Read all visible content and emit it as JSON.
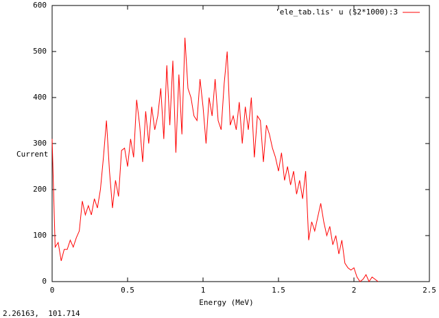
{
  "chart_data": {
    "type": "line",
    "xlabel": "Energy (MeV)",
    "ylabel": "Current",
    "x": [
      0,
      0.02,
      0.04,
      0.06,
      0.08,
      0.1,
      0.12,
      0.14,
      0.16,
      0.18,
      0.2,
      0.22,
      0.24,
      0.26,
      0.28,
      0.3,
      0.32,
      0.34,
      0.36,
      0.38,
      0.4,
      0.42,
      0.44,
      0.46,
      0.48,
      0.5,
      0.52,
      0.54,
      0.56,
      0.58,
      0.6,
      0.62,
      0.64,
      0.66,
      0.68,
      0.7,
      0.72,
      0.74,
      0.76,
      0.78,
      0.8,
      0.82,
      0.84,
      0.86,
      0.88,
      0.9,
      0.92,
      0.94,
      0.96,
      0.98,
      1,
      1.02,
      1.04,
      1.06,
      1.08,
      1.1,
      1.12,
      1.14,
      1.16,
      1.18,
      1.2,
      1.22,
      1.24,
      1.26,
      1.28,
      1.3,
      1.32,
      1.34,
      1.36,
      1.38,
      1.4,
      1.42,
      1.44,
      1.46,
      1.48,
      1.5,
      1.52,
      1.54,
      1.56,
      1.58,
      1.6,
      1.62,
      1.64,
      1.66,
      1.68,
      1.7,
      1.72,
      1.74,
      1.76,
      1.78,
      1.8,
      1.82,
      1.84,
      1.86,
      1.88,
      1.9,
      1.92,
      1.94,
      1.96,
      1.98,
      2,
      2.02,
      2.04,
      2.06,
      2.08,
      2.1,
      2.12,
      2.14,
      2.16
    ],
    "series": [
      {
        "name": "'ele_tab.lis' u ($2*1000):3",
        "color": "#ff0000",
        "values": [
          310,
          75,
          85,
          45,
          70,
          70,
          90,
          75,
          95,
          110,
          175,
          145,
          165,
          145,
          180,
          160,
          200,
          270,
          350,
          240,
          160,
          220,
          185,
          285,
          290,
          250,
          310,
          270,
          395,
          340,
          260,
          370,
          300,
          380,
          330,
          360,
          420,
          310,
          470,
          340,
          480,
          280,
          450,
          320,
          530,
          420,
          400,
          360,
          350,
          440,
          380,
          300,
          400,
          360,
          440,
          350,
          330,
          430,
          500,
          340,
          360,
          330,
          390,
          300,
          380,
          330,
          400,
          270,
          360,
          350,
          260,
          340,
          320,
          290,
          270,
          240,
          280,
          220,
          250,
          210,
          240,
          190,
          220,
          180,
          240,
          90,
          130,
          110,
          140,
          170,
          130,
          100,
          120,
          80,
          100,
          60,
          90,
          40,
          30,
          25,
          30,
          10,
          0,
          5,
          15,
          0,
          10,
          5,
          0
        ]
      }
    ],
    "xlim": [
      0,
      2.5
    ],
    "xticks": [
      0,
      0.5,
      1,
      1.5,
      2,
      2.5
    ],
    "ylim": [
      0,
      600
    ],
    "yticks": [
      0,
      100,
      200,
      300,
      400,
      500,
      600
    ],
    "grid": false,
    "legend": "top-right"
  },
  "status": "2.26163,  101.714"
}
